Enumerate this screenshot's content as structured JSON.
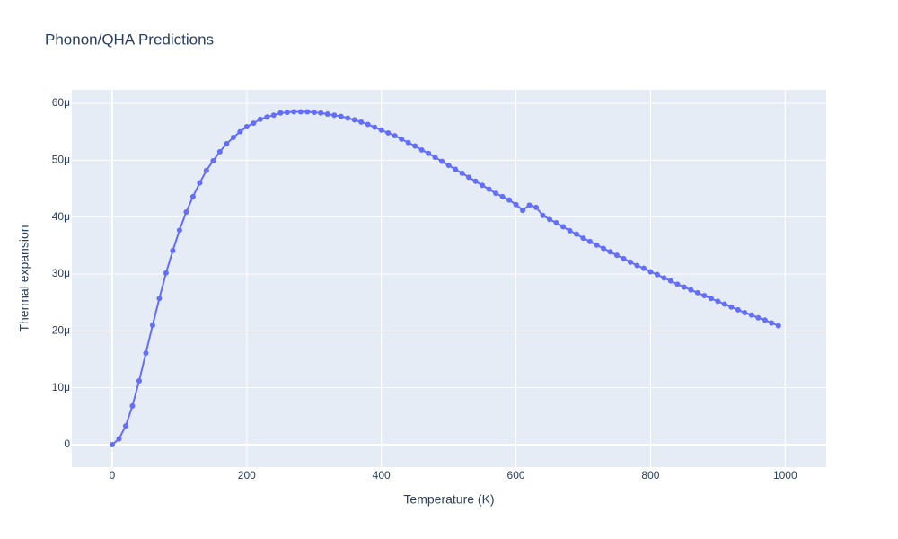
{
  "chart_data": {
    "type": "line",
    "title": "Phonon/QHA Predictions",
    "x_label": "Temperature (K)",
    "y_label": "Thermal expansion",
    "x": [
      0,
      10,
      20,
      30,
      40,
      50,
      60,
      70,
      80,
      90,
      100,
      110,
      120,
      130,
      140,
      150,
      160,
      170,
      180,
      190,
      200,
      210,
      220,
      230,
      240,
      250,
      260,
      270,
      280,
      290,
      300,
      310,
      320,
      330,
      340,
      350,
      360,
      370,
      380,
      390,
      400,
      410,
      420,
      430,
      440,
      450,
      460,
      470,
      480,
      490,
      500,
      510,
      520,
      530,
      540,
      550,
      560,
      570,
      580,
      590,
      600,
      610,
      620,
      630,
      640,
      650,
      660,
      670,
      680,
      690,
      700,
      710,
      720,
      730,
      740,
      750,
      760,
      770,
      780,
      790,
      800,
      810,
      820,
      830,
      840,
      850,
      860,
      870,
      880,
      890,
      900,
      910,
      920,
      930,
      940,
      950,
      960,
      970,
      980,
      990
    ],
    "series": [
      {
        "color": "#636efa",
        "values": [
          0,
          1e-06,
          3.3e-06,
          6.8e-06,
          1.12e-05,
          1.61e-05,
          2.1e-05,
          2.57e-05,
          3.02e-05,
          3.41e-05,
          3.77e-05,
          4.09e-05,
          4.36e-05,
          4.6e-05,
          4.82e-05,
          4.99e-05,
          5.15e-05,
          5.29e-05,
          5.4e-05,
          5.5e-05,
          5.59e-05,
          5.65e-05,
          5.72e-05,
          5.76e-05,
          5.79e-05,
          5.83e-05,
          5.84e-05,
          5.85e-05,
          5.85e-05,
          5.85e-05,
          5.84e-05,
          5.83e-05,
          5.81e-05,
          5.79e-05,
          5.77e-05,
          5.74e-05,
          5.71e-05,
          5.67e-05,
          5.63e-05,
          5.58e-05,
          5.53e-05,
          5.48e-05,
          5.43e-05,
          5.37e-05,
          5.31e-05,
          5.25e-05,
          5.18e-05,
          5.12e-05,
          5.05e-05,
          4.98e-05,
          4.91e-05,
          4.84e-05,
          4.77e-05,
          4.7e-05,
          4.63e-05,
          4.56e-05,
          4.49e-05,
          4.42e-05,
          4.36e-05,
          4.3e-05,
          4.22e-05,
          4.12e-05,
          4.21e-05,
          4.17e-05,
          4.03e-05,
          3.96e-05,
          3.9e-05,
          3.83e-05,
          3.76e-05,
          3.7e-05,
          3.63e-05,
          3.57e-05,
          3.51e-05,
          3.45e-05,
          3.39e-05,
          3.33e-05,
          3.27e-05,
          3.21e-05,
          3.15e-05,
          3.1e-05,
          3.04e-05,
          2.99e-05,
          2.93e-05,
          2.88e-05,
          2.82e-05,
          2.77e-05,
          2.72e-05,
          2.67e-05,
          2.62e-05,
          2.57e-05,
          2.52e-05,
          2.47e-05,
          2.42e-05,
          2.37e-05,
          2.32e-05,
          2.28e-05,
          2.23e-05,
          2.19e-05,
          2.14e-05,
          2.09e-05
        ]
      }
    ],
    "xlim": [
      -60,
      1061
    ],
    "ylim": [
      -3.95e-06,
      6.237e-05
    ],
    "xticks": [
      0,
      200,
      400,
      600,
      800,
      1000
    ],
    "yticks": [
      0,
      {
        "value": 1e-05,
        "label": "10μ"
      },
      {
        "value": 2e-05,
        "label": "20μ"
      },
      {
        "value": 3e-05,
        "label": "30μ"
      },
      {
        "value": 4e-05,
        "label": "40μ"
      },
      {
        "value": 5e-05,
        "label": "50μ"
      },
      {
        "value": 6e-05,
        "label": "60μ"
      }
    ],
    "grid": true,
    "markers": true
  }
}
